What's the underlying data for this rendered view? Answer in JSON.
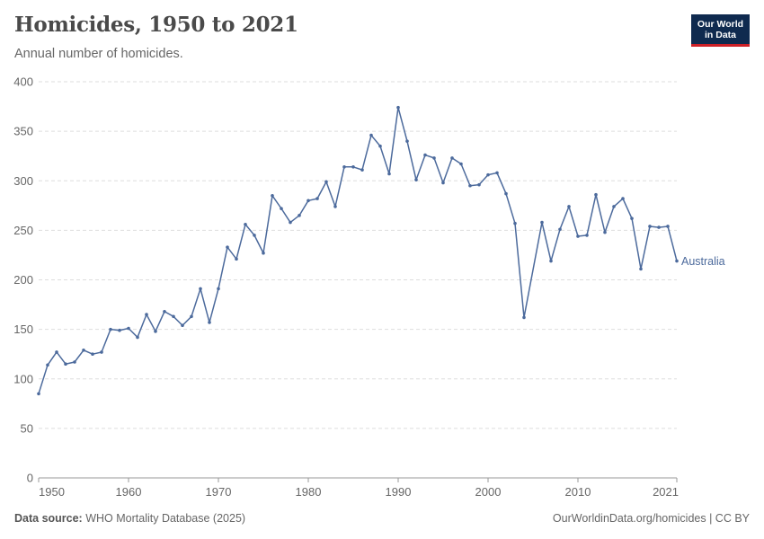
{
  "header": {
    "title": "Homicides, 1950 to 2021",
    "subtitle": "Annual number of homicides."
  },
  "logo": {
    "line1": "Our World",
    "line2": "in Data"
  },
  "footer": {
    "source_label": "Data source:",
    "source_value": "WHO Mortality Database (2025)",
    "link": "OurWorldinData.org/homicides | CC BY"
  },
  "colors": {
    "series": "#4c6a9c",
    "grid": "#dddddd",
    "axis": "#999999"
  },
  "chart_data": {
    "type": "line",
    "title": "Homicides, 1950 to 2021",
    "subtitle": "Annual number of homicides.",
    "xlabel": "",
    "ylabel": "",
    "xlim": [
      1950,
      2021
    ],
    "ylim": [
      0,
      400
    ],
    "x_ticks": [
      1950,
      1960,
      1970,
      1980,
      1990,
      2000,
      2010,
      2021
    ],
    "y_ticks": [
      0,
      50,
      100,
      150,
      200,
      250,
      300,
      350,
      400
    ],
    "grid": "horizontal-dashed",
    "series": [
      {
        "name": "Australia",
        "x": [
          1950,
          1951,
          1952,
          1953,
          1954,
          1955,
          1956,
          1957,
          1958,
          1959,
          1960,
          1961,
          1962,
          1963,
          1964,
          1965,
          1966,
          1967,
          1968,
          1969,
          1970,
          1971,
          1972,
          1973,
          1974,
          1975,
          1976,
          1977,
          1978,
          1979,
          1980,
          1981,
          1982,
          1983,
          1984,
          1985,
          1986,
          1987,
          1988,
          1989,
          1990,
          1991,
          1992,
          1993,
          1994,
          1995,
          1996,
          1997,
          1998,
          1999,
          2000,
          2001,
          2002,
          2003,
          2004,
          2006,
          2007,
          2008,
          2009,
          2010,
          2011,
          2012,
          2013,
          2014,
          2015,
          2016,
          2017,
          2018,
          2019,
          2020,
          2021
        ],
        "values": [
          85,
          114,
          127,
          115,
          117,
          129,
          125,
          127,
          150,
          149,
          151,
          142,
          165,
          148,
          168,
          163,
          154,
          163,
          191,
          157,
          191,
          233,
          221,
          256,
          245,
          227,
          285,
          272,
          258,
          265,
          280,
          282,
          299,
          274,
          314,
          314,
          311,
          346,
          335,
          307,
          374,
          340,
          301,
          326,
          323,
          298,
          323,
          317,
          295,
          296,
          306,
          308,
          287,
          257,
          162,
          258,
          219,
          251,
          274,
          244,
          245,
          286,
          248,
          274,
          282,
          262,
          211,
          254,
          253,
          254,
          219
        ]
      }
    ]
  }
}
